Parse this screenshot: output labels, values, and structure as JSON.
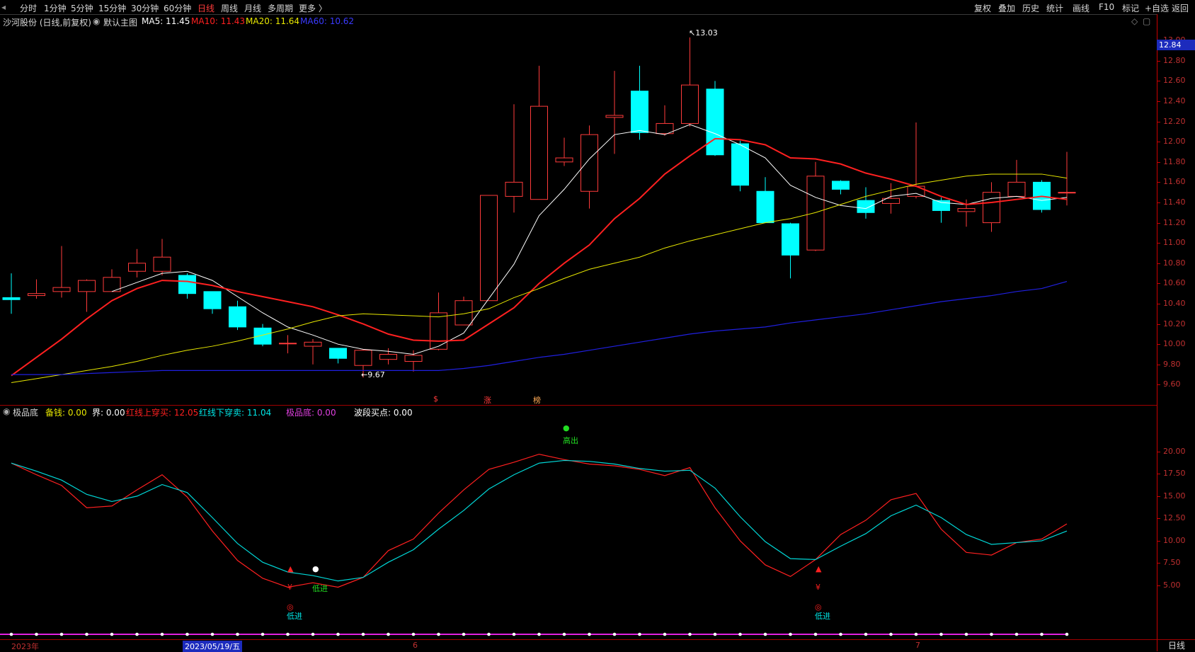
{
  "toolbar": {
    "left_items": [
      "分时",
      "1分钟",
      "5分钟",
      "15分钟",
      "30分钟",
      "60分钟",
      "日线",
      "周线",
      "月线",
      "多周期",
      "更多 〉"
    ],
    "active_item": "日线",
    "right_items": [
      "复权",
      "叠加",
      "历史",
      "统计",
      "画线",
      "F10",
      "标记",
      "+自选",
      "返回"
    ]
  },
  "main_info": {
    "stock": "沙河股份 (日线,前复权)",
    "template": "默认主图",
    "ma5": "MA5: 11.45",
    "ma10": "MA10: 11.43",
    "ma20": "MA20: 11.64",
    "ma60": "MA60: 10.62",
    "colors": {
      "ma5": "#ffffff",
      "ma10": "#ff2020",
      "ma20": "#e8e800",
      "ma60": "#2020e0"
    }
  },
  "current_price": "12.84",
  "annotations": {
    "high": "13.03",
    "low": "9.67",
    "event_marks": [
      "$",
      "涨",
      "榜"
    ]
  },
  "sub_info": {
    "name": "极品底",
    "beiqian": "备钱: 0.00",
    "jie": "界: 0.00",
    "red_up": "红线上穿买: 12.05",
    "red_down": "红线下穿卖: 11.04",
    "jipindi": "极品底: 0.00",
    "boduan": "波段买点: 0.00"
  },
  "signals": {
    "high_out": "高出",
    "low_in": "低进",
    "yen": "¥",
    "target": "◎"
  },
  "dates": {
    "year": "2023年",
    "cursor": "2023/05/19/五",
    "m6": "6",
    "m7": "7"
  },
  "period_button": "日线",
  "chart_data": [
    {
      "type": "candlestick",
      "y_axis_ticks": [
        "13.00",
        "12.80",
        "12.60",
        "12.40",
        "12.20",
        "12.00",
        "11.80",
        "11.60",
        "11.40",
        "11.20",
        "11.00",
        "10.80",
        "10.60",
        "10.40",
        "10.20",
        "10.00",
        "9.80",
        "9.60"
      ],
      "ylim": [
        9.47,
        13.12
      ],
      "candles": [
        {
          "o": 10.46,
          "h": 10.7,
          "l": 10.3,
          "c": 10.44
        },
        {
          "o": 10.48,
          "h": 10.64,
          "l": 10.45,
          "c": 10.5
        },
        {
          "o": 10.52,
          "h": 10.97,
          "l": 10.46,
          "c": 10.56
        },
        {
          "o": 10.52,
          "h": 10.64,
          "l": 10.32,
          "c": 10.63
        },
        {
          "o": 10.52,
          "h": 10.74,
          "l": 10.52,
          "c": 10.66
        },
        {
          "o": 10.72,
          "h": 10.94,
          "l": 10.66,
          "c": 10.8
        },
        {
          "o": 10.72,
          "h": 11.04,
          "l": 10.68,
          "c": 10.86
        },
        {
          "o": 10.68,
          "h": 10.7,
          "l": 10.45,
          "c": 10.5
        },
        {
          "o": 10.52,
          "h": 10.52,
          "l": 10.3,
          "c": 10.35
        },
        {
          "o": 10.37,
          "h": 10.43,
          "l": 10.14,
          "c": 10.17
        },
        {
          "o": 10.16,
          "h": 10.2,
          "l": 9.98,
          "c": 10.0
        },
        {
          "o": 10.01,
          "h": 10.09,
          "l": 9.91,
          "c": 10.01
        },
        {
          "o": 9.98,
          "h": 10.05,
          "l": 9.8,
          "c": 10.02
        },
        {
          "o": 9.96,
          "h": 9.96,
          "l": 9.81,
          "c": 9.86
        },
        {
          "o": 9.79,
          "h": 9.95,
          "l": 9.67,
          "c": 9.94
        },
        {
          "o": 9.85,
          "h": 9.96,
          "l": 9.8,
          "c": 9.9
        },
        {
          "o": 9.83,
          "h": 9.94,
          "l": 9.73,
          "c": 9.89
        },
        {
          "o": 9.95,
          "h": 10.51,
          "l": 9.94,
          "c": 10.31
        },
        {
          "o": 10.19,
          "h": 10.47,
          "l": 10.19,
          "c": 10.43
        },
        {
          "o": 10.43,
          "h": 11.47,
          "l": 10.43,
          "c": 11.47
        },
        {
          "o": 11.46,
          "h": 12.37,
          "l": 11.3,
          "c": 11.6
        },
        {
          "o": 11.43,
          "h": 12.75,
          "l": 11.43,
          "c": 12.35
        },
        {
          "o": 11.8,
          "h": 12.04,
          "l": 11.76,
          "c": 11.84
        },
        {
          "o": 11.51,
          "h": 12.16,
          "l": 11.34,
          "c": 12.07
        },
        {
          "o": 12.24,
          "h": 12.7,
          "l": 11.88,
          "c": 12.26
        },
        {
          "o": 12.5,
          "h": 12.75,
          "l": 12.02,
          "c": 12.09
        },
        {
          "o": 12.08,
          "h": 12.36,
          "l": 12.06,
          "c": 12.18
        },
        {
          "o": 12.18,
          "h": 13.03,
          "l": 12.15,
          "c": 12.56
        },
        {
          "o": 12.52,
          "h": 12.6,
          "l": 11.86,
          "c": 11.87
        },
        {
          "o": 11.98,
          "h": 12.01,
          "l": 11.51,
          "c": 11.57
        },
        {
          "o": 11.51,
          "h": 11.65,
          "l": 11.2,
          "c": 11.2
        },
        {
          "o": 11.19,
          "h": 11.2,
          "l": 10.65,
          "c": 10.88
        },
        {
          "o": 10.93,
          "h": 11.8,
          "l": 10.92,
          "c": 11.66
        },
        {
          "o": 11.61,
          "h": 11.62,
          "l": 11.48,
          "c": 11.53
        },
        {
          "o": 11.42,
          "h": 11.55,
          "l": 11.24,
          "c": 11.3
        },
        {
          "o": 11.39,
          "h": 11.59,
          "l": 11.29,
          "c": 11.44
        },
        {
          "o": 11.46,
          "h": 12.19,
          "l": 11.44,
          "c": 11.56
        },
        {
          "o": 11.42,
          "h": 11.45,
          "l": 11.2,
          "c": 11.32
        },
        {
          "o": 11.31,
          "h": 11.43,
          "l": 11.16,
          "c": 11.34
        },
        {
          "o": 11.2,
          "h": 11.6,
          "l": 11.11,
          "c": 11.5
        },
        {
          "o": 11.46,
          "h": 11.82,
          "l": 11.46,
          "c": 11.6
        },
        {
          "o": 11.6,
          "h": 11.62,
          "l": 11.3,
          "c": 11.33
        },
        {
          "o": 11.5,
          "h": 11.9,
          "l": 11.37,
          "c": 11.5
        }
      ],
      "series": [
        {
          "name": "MA5",
          "values": [
            null,
            null,
            null,
            null,
            10.52,
            10.61,
            10.7,
            10.72,
            10.63,
            10.47,
            10.31,
            10.17,
            10.09,
            10.0,
            9.95,
            9.93,
            9.9,
            9.98,
            10.11,
            10.45,
            10.79,
            11.27,
            11.53,
            11.83,
            12.07,
            12.11,
            12.07,
            12.17,
            12.08,
            11.97,
            11.84,
            11.57,
            11.45,
            11.37,
            11.34,
            11.46,
            11.49,
            11.4,
            11.38,
            11.44,
            11.46,
            11.42,
            11.45
          ]
        },
        {
          "name": "MA10",
          "values": [
            9.69,
            9.87,
            10.05,
            10.25,
            10.43,
            10.55,
            10.63,
            10.62,
            10.58,
            10.52,
            10.47,
            10.42,
            10.37,
            10.29,
            10.2,
            10.1,
            10.04,
            10.03,
            10.04,
            10.2,
            10.36,
            10.6,
            10.8,
            10.98,
            11.24,
            11.44,
            11.68,
            11.86,
            12.03,
            12.02,
            11.97,
            11.84,
            11.83,
            11.78,
            11.69,
            11.63,
            11.56,
            11.46,
            11.38,
            11.4,
            11.43,
            11.46,
            11.43
          ]
        },
        {
          "name": "MA20",
          "values": [
            9.62,
            9.66,
            9.7,
            9.74,
            9.78,
            9.83,
            9.89,
            9.94,
            9.98,
            10.03,
            10.09,
            10.15,
            10.22,
            10.28,
            10.3,
            10.29,
            10.28,
            10.27,
            10.3,
            10.35,
            10.46,
            10.55,
            10.65,
            10.74,
            10.8,
            10.86,
            10.95,
            11.02,
            11.08,
            11.14,
            11.2,
            11.24,
            11.3,
            11.38,
            11.46,
            11.52,
            11.58,
            11.62,
            11.66,
            11.68,
            11.68,
            11.68,
            11.64
          ]
        },
        {
          "name": "MA60",
          "values": [
            9.7,
            9.7,
            9.7,
            9.71,
            9.72,
            9.73,
            9.74,
            9.74,
            9.74,
            9.74,
            9.74,
            9.74,
            9.74,
            9.74,
            9.74,
            9.74,
            9.74,
            9.74,
            9.76,
            9.79,
            9.83,
            9.87,
            9.9,
            9.94,
            9.98,
            10.02,
            10.06,
            10.1,
            10.13,
            10.15,
            10.17,
            10.21,
            10.24,
            10.27,
            10.3,
            10.34,
            10.38,
            10.42,
            10.45,
            10.48,
            10.52,
            10.55,
            10.62
          ]
        }
      ]
    },
    {
      "type": "line",
      "title": "极品底",
      "y_axis_ticks": [
        "20.00",
        "17.50",
        "15.00",
        "12.50",
        "10.00",
        "7.50",
        "5.00"
      ],
      "ylim": [
        0,
        23
      ],
      "series": [
        {
          "name": "红线",
          "values": [
            18.7,
            17.4,
            16.2,
            13.7,
            13.9,
            15.7,
            17.4,
            14.9,
            11.1,
            7.8,
            5.8,
            4.8,
            5.3,
            4.8,
            5.9,
            8.9,
            10.2,
            13.1,
            15.7,
            18.0,
            18.8,
            19.7,
            19.1,
            18.6,
            18.4,
            18.0,
            17.3,
            18.2,
            13.7,
            10.0,
            7.3,
            6.0,
            7.9,
            10.7,
            12.3,
            14.6,
            15.3,
            11.3,
            8.7,
            8.4,
            9.8,
            10.2,
            11.9
          ]
        },
        {
          "name": "蓝线",
          "values": [
            18.7,
            17.8,
            16.8,
            15.2,
            14.4,
            15.0,
            16.3,
            15.4,
            12.6,
            9.7,
            7.6,
            6.5,
            6.1,
            5.5,
            5.9,
            7.6,
            9.0,
            11.3,
            13.4,
            15.8,
            17.4,
            18.7,
            19.0,
            18.9,
            18.6,
            18.1,
            17.8,
            17.9,
            15.9,
            12.7,
            9.9,
            8.0,
            7.9,
            9.4,
            10.8,
            12.8,
            14.0,
            12.6,
            10.7,
            9.6,
            9.8,
            10.0,
            11.1
          ]
        }
      ]
    }
  ]
}
